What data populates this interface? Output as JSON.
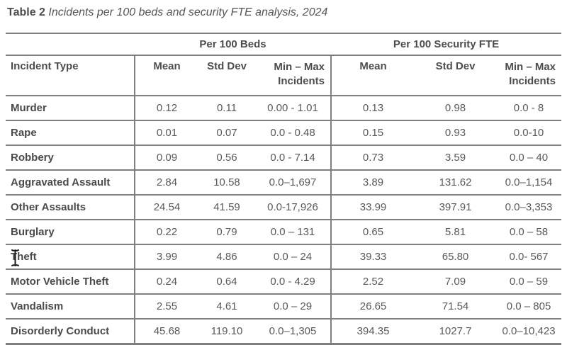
{
  "title": {
    "label": "Table 2",
    "caption": " Incidents per 100 beds and security FTE analysis, 2024"
  },
  "table": {
    "group_headers": [
      "Per 100 Beds",
      "Per 100 Security FTE"
    ],
    "columns": {
      "incident_type": "Incident Type",
      "mean": "Mean",
      "std_dev": "Std Dev",
      "min_max_line1": "Min – Max",
      "min_max_line2": "Incidents"
    },
    "rows": [
      {
        "name": "Murder",
        "beds_mean": "0.12",
        "beds_sd": "0.11",
        "beds_minmax": "0.00 - 1.01",
        "fte_mean": "0.13",
        "fte_sd": "0.98",
        "fte_minmax": "0.0 - 8"
      },
      {
        "name": "Rape",
        "beds_mean": "0.01",
        "beds_sd": "0.07",
        "beds_minmax": "0.0 - 0.48",
        "fte_mean": "0.15",
        "fte_sd": "0.93",
        "fte_minmax": "0.0-10"
      },
      {
        "name": "Robbery",
        "beds_mean": "0.09",
        "beds_sd": "0.56",
        "beds_minmax": "0.0 - 7.14",
        "fte_mean": "0.73",
        "fte_sd": "3.59",
        "fte_minmax": "0.0 – 40"
      },
      {
        "name": "Aggravated Assault",
        "beds_mean": "2.84",
        "beds_sd": "10.58",
        "beds_minmax": "0.0–1,697",
        "fte_mean": "3.89",
        "fte_sd": "131.62",
        "fte_minmax": "0.0–1,154"
      },
      {
        "name": "Other Assaults",
        "beds_mean": "24.54",
        "beds_sd": "41.59",
        "beds_minmax": "0.0-17,926",
        "fte_mean": "33.99",
        "fte_sd": "397.91",
        "fte_minmax": "0.0–3,353"
      },
      {
        "name": "Burglary",
        "beds_mean": "0.22",
        "beds_sd": "0.79",
        "beds_minmax": "0.0 – 131",
        "fte_mean": "0.65",
        "fte_sd": "5.81",
        "fte_minmax": "0.0 – 58"
      },
      {
        "name": "Theft",
        "beds_mean": "3.99",
        "beds_sd": "4.86",
        "beds_minmax": "0.0 – 24",
        "fte_mean": "39.33",
        "fte_sd": "65.80",
        "fte_minmax": "0.0- 567"
      },
      {
        "name": "Motor Vehicle Theft",
        "beds_mean": "0.24",
        "beds_sd": "0.64",
        "beds_minmax": "0.0 - 4.29",
        "fte_mean": "2.52",
        "fte_sd": "7.09",
        "fte_minmax": "0.0 – 59"
      },
      {
        "name": "Vandalism",
        "beds_mean": "2.55",
        "beds_sd": "4.61",
        "beds_minmax": "0.0 – 29",
        "fte_mean": "26.65",
        "fte_sd": "71.54",
        "fte_minmax": "0.0 – 805"
      },
      {
        "name": "Disorderly Conduct",
        "beds_mean": "45.68",
        "beds_sd": "119.10",
        "beds_minmax": "0.0–1,305",
        "fte_mean": "394.35",
        "fte_sd": "1027.7",
        "fte_minmax": "0.0–10,423"
      }
    ]
  },
  "colors": {
    "text": "#595959",
    "bold_text": "#4a4a4a",
    "border": "#7f7f7f",
    "background": "#ffffff",
    "cursor": "#1a1a1a"
  }
}
